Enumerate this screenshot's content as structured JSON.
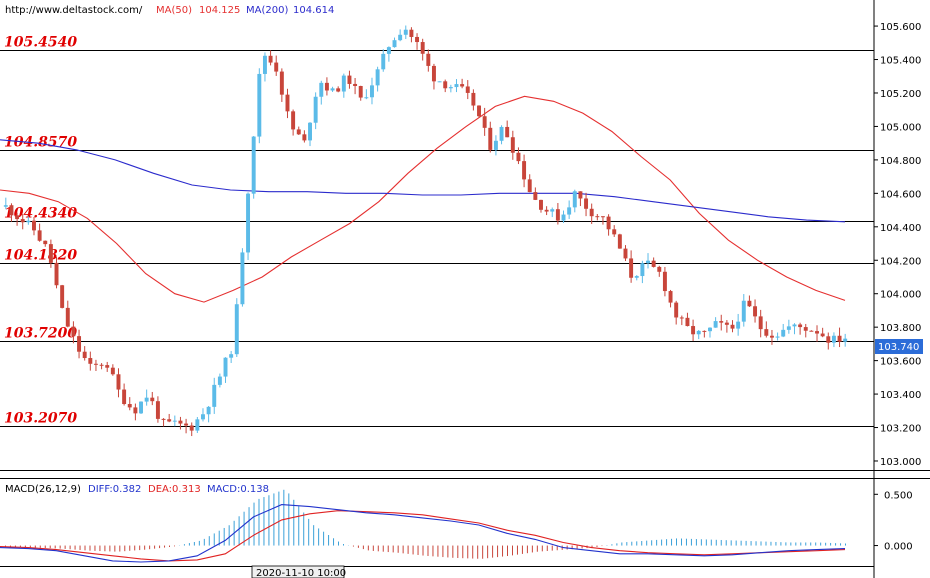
{
  "header": {
    "url": "http://www.deltastock.com/",
    "ma50_label": "MA(50)",
    "ma50_value": "104.125",
    "ma200_label": "MA(200)",
    "ma200_value": "104.614"
  },
  "macd_header": {
    "label": "MACD(26,12,9)",
    "diff": "DIFF:0.382",
    "dea": "DEA:0.313",
    "macd": "MACD:0.138"
  },
  "time_label": "2020-11-10 10:00",
  "current_price": "103.740",
  "colors": {
    "bull": "#5bbbe8",
    "bear": "#c8453a",
    "ma50": "#e53030",
    "ma200": "#2b2bcc",
    "level_text": "#e00000",
    "diff": "#2233cc",
    "dea": "#e02222",
    "hist_pos": "#3aa0d8",
    "hist_neg": "#c8453a"
  },
  "chart_data": [
    {
      "type": "candlestick",
      "ylim": [
        102.97,
        105.72
      ],
      "y_ticks": [
        "103.000",
        "103.200",
        "103.400",
        "103.600",
        "103.800",
        "104.000",
        "104.200",
        "104.400",
        "104.600",
        "104.800",
        "105.000",
        "105.200",
        "105.400",
        "105.600"
      ],
      "levels": [
        {
          "value": 105.454,
          "label": "105.4540"
        },
        {
          "value": 104.857,
          "label": "104.8570"
        },
        {
          "value": 104.434,
          "label": "104.4340"
        },
        {
          "value": 104.182,
          "label": "104.1820"
        },
        {
          "value": 103.72,
          "label": "103.7200"
        },
        {
          "value": 103.207,
          "label": "103.2070"
        }
      ],
      "close_anchors": [
        104.52,
        104.45,
        104.38,
        104.25,
        103.88,
        103.68,
        103.55,
        103.6,
        103.4,
        103.3,
        103.4,
        103.22,
        103.22,
        103.2,
        103.3,
        103.5,
        103.7,
        104.6,
        105.45,
        105.35,
        105.0,
        104.9,
        105.28,
        105.2,
        105.3,
        105.15,
        105.3,
        105.5,
        105.6,
        105.48,
        105.3,
        105.25,
        105.22,
        105.12,
        104.88,
        105.0,
        104.8,
        104.58,
        104.5,
        104.45,
        104.6,
        104.5,
        104.45,
        104.3,
        104.1,
        104.18,
        104.12,
        103.88,
        103.78,
        103.75,
        103.82,
        103.78,
        103.95,
        103.8,
        103.75,
        103.8,
        103.8,
        103.78,
        103.72,
        103.74
      ],
      "ma50": [
        104.62,
        104.6,
        104.55,
        104.45,
        104.3,
        104.12,
        104.0,
        103.95,
        104.02,
        104.1,
        104.22,
        104.32,
        104.42,
        104.55,
        104.72,
        104.87,
        105.0,
        105.12,
        105.18,
        105.15,
        105.08,
        104.97,
        104.82,
        104.68,
        104.48,
        104.32,
        104.2,
        104.1,
        104.02,
        103.96
      ],
      "ma200": [
        104.92,
        104.9,
        104.86,
        104.8,
        104.72,
        104.65,
        104.62,
        104.61,
        104.61,
        104.6,
        104.6,
        104.59,
        104.59,
        104.6,
        104.6,
        104.6,
        104.58,
        104.55,
        104.52,
        104.49,
        104.46,
        104.44,
        104.43
      ]
    },
    {
      "type": "macd",
      "ylim": [
        -0.18,
        0.62
      ],
      "y_ticks": [
        "0.500",
        "0.000"
      ],
      "diff": [
        -0.02,
        -0.03,
        -0.05,
        -0.1,
        -0.15,
        -0.16,
        -0.15,
        -0.1,
        0.05,
        0.28,
        0.4,
        0.38,
        0.35,
        0.32,
        0.3,
        0.27,
        0.24,
        0.2,
        0.12,
        0.06,
        -0.02,
        -0.05,
        -0.08,
        -0.08,
        -0.09,
        -0.1,
        -0.09,
        -0.07,
        -0.05,
        -0.04,
        -0.03
      ],
      "dea": [
        -0.01,
        -0.02,
        -0.04,
        -0.07,
        -0.1,
        -0.13,
        -0.15,
        -0.14,
        -0.08,
        0.1,
        0.25,
        0.31,
        0.34,
        0.33,
        0.32,
        0.3,
        0.26,
        0.22,
        0.15,
        0.1,
        0.03,
        -0.02,
        -0.05,
        -0.07,
        -0.08,
        -0.09,
        -0.08,
        -0.07,
        -0.06,
        -0.05,
        -0.04
      ],
      "hist_anchors": [
        -0.01,
        -0.02,
        -0.03,
        -0.05,
        -0.06,
        -0.04,
        -0.01,
        0.05,
        0.2,
        0.45,
        0.55,
        0.2,
        0.02,
        -0.05,
        -0.07,
        -0.1,
        -0.12,
        -0.13,
        -0.1,
        -0.06,
        -0.04,
        -0.02,
        0.03,
        0.05,
        0.07,
        0.06,
        0.05,
        0.04,
        0.03,
        0.03,
        0.02
      ]
    }
  ]
}
